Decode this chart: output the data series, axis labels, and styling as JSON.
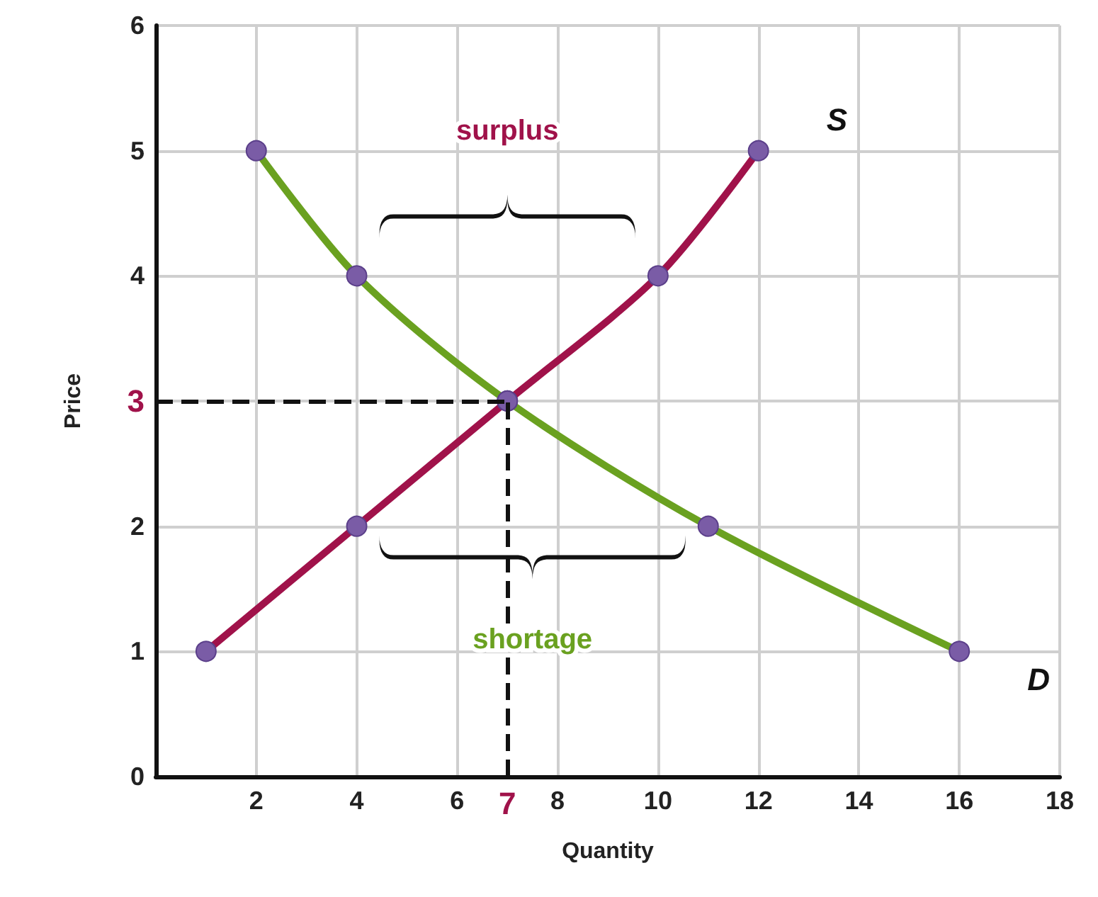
{
  "chart_data": {
    "type": "line",
    "xlabel": "Quantity",
    "ylabel": "Price",
    "series": [
      {
        "name": "S",
        "color": "#a0124a",
        "x": [
          1,
          4,
          7,
          10,
          12
        ],
        "values": [
          1,
          2,
          3,
          4,
          5
        ]
      },
      {
        "name": "D",
        "color": "#6aa120",
        "x": [
          2,
          4,
          7,
          11,
          16
        ],
        "values": [
          5,
          4,
          3,
          2,
          1
        ]
      }
    ],
    "xlim": [
      0,
      18
    ],
    "xticks": [
      2,
      4,
      6,
      8,
      10,
      12,
      14,
      16,
      18
    ],
    "ylim": [
      0,
      6
    ],
    "yticks": [
      0,
      1,
      2,
      {
        "value": 3,
        "label": null
      },
      4,
      5,
      6
    ],
    "ref_lines": [
      {
        "axis": "x",
        "value": 7,
        "label": "7",
        "color": "#111111",
        "line_style": "dashed"
      },
      {
        "axis": "y",
        "value": 3,
        "label": "3",
        "color": "#111111",
        "line_style": "dashed"
      }
    ],
    "annotations": [
      "surplus",
      "shortage"
    ],
    "grid": true,
    "legend": false,
    "marker": "circle",
    "line_style": "solid"
  }
}
